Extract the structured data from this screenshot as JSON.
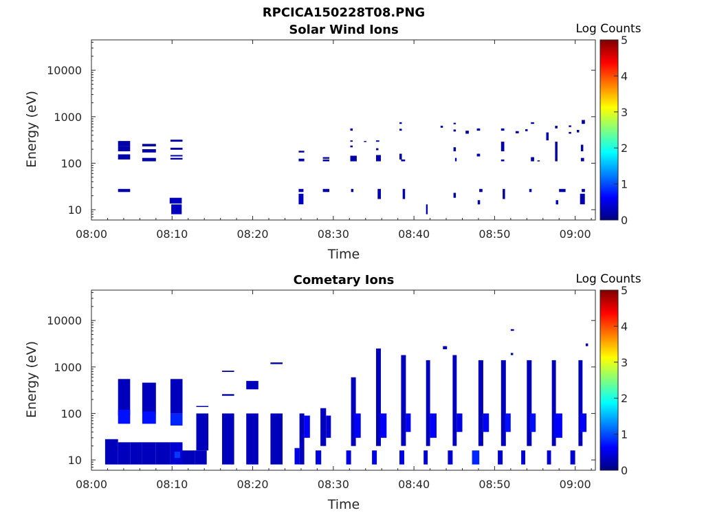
{
  "figure_title": "RPCICA150228T08.PNG",
  "colors": {
    "cmap": [
      "#00007f",
      "#0000ff",
      "#007fff",
      "#00ffff",
      "#7fff7f",
      "#ffff00",
      "#ff7f00",
      "#ff0000",
      "#7f0000"
    ],
    "axis": "#262626"
  },
  "chart_data": [
    {
      "type": "heatmap",
      "title": "Solar Wind Ions",
      "xlabel": "Time",
      "ylabel": "Energy (eV)",
      "colorbar_label": "Log Counts",
      "colorbar_ticks": [
        "0",
        "1",
        "2",
        "3",
        "4",
        "5"
      ],
      "clim": [
        0,
        5
      ],
      "x_unit": "minutes after 08:00",
      "xlim": [
        0,
        62.5
      ],
      "x_ticks": [
        0,
        10,
        20,
        30,
        40,
        50,
        60
      ],
      "x_tick_labels": [
        "08:00",
        "08:10",
        "08:20",
        "08:30",
        "08:40",
        "08:50",
        "09:00"
      ],
      "y_scale": "log",
      "ylim": [
        6,
        45000
      ],
      "y_ticks": [
        10,
        100,
        1000,
        10000
      ],
      "y_tick_labels": [
        "10",
        "100",
        "1000",
        "10000"
      ],
      "cells": [
        [
          3.3,
          4.8,
          230,
          300,
          0.2
        ],
        [
          3.3,
          4.8,
          180,
          230,
          0.2
        ],
        [
          3.3,
          4.8,
          120,
          155,
          0.2
        ],
        [
          3.3,
          4.8,
          24,
          28,
          0.2
        ],
        [
          6.3,
          8.0,
          230,
          260,
          0.2
        ],
        [
          6.3,
          8.0,
          170,
          200,
          0.2
        ],
        [
          6.3,
          8.0,
          110,
          130,
          0.2
        ],
        [
          9.8,
          11.3,
          290,
          320,
          0.2
        ],
        [
          9.8,
          11.3,
          195,
          215,
          0.2
        ],
        [
          9.8,
          11.3,
          140,
          150,
          0.2
        ],
        [
          9.8,
          11.3,
          120,
          130,
          0.2
        ],
        [
          9.7,
          11.2,
          13.5,
          18,
          0.3
        ],
        [
          9.9,
          11.2,
          8,
          13,
          0.3
        ],
        [
          25.7,
          26.4,
          170,
          185,
          0.2
        ],
        [
          25.7,
          26.4,
          110,
          125,
          0.2
        ],
        [
          25.7,
          26.3,
          24,
          28,
          0.2
        ],
        [
          25.7,
          26.3,
          13,
          22,
          0.3
        ],
        [
          28.7,
          29.5,
          125,
          135,
          0.2
        ],
        [
          28.7,
          29.5,
          110,
          120,
          0.2
        ],
        [
          28.7,
          29.5,
          24,
          28,
          0.2
        ],
        [
          32.1,
          32.4,
          500,
          560,
          0.2
        ],
        [
          32.1,
          32.4,
          290,
          310,
          0.2
        ],
        [
          32.1,
          32.4,
          220,
          240,
          0.2
        ],
        [
          32.1,
          32.9,
          110,
          145,
          0.2
        ],
        [
          32.2,
          32.5,
          24,
          28,
          0.2
        ],
        [
          33.8,
          34.1,
          290,
          300,
          0.2
        ],
        [
          35.3,
          35.7,
          290,
          310,
          0.2
        ],
        [
          35.3,
          35.6,
          190,
          210,
          0.2
        ],
        [
          35.3,
          35.9,
          110,
          150,
          0.2
        ],
        [
          35.5,
          35.9,
          17,
          28,
          0.2
        ],
        [
          38.2,
          38.5,
          700,
          760,
          0.2
        ],
        [
          38.2,
          38.5,
          500,
          550,
          0.2
        ],
        [
          38.2,
          38.5,
          120,
          160,
          0.2
        ],
        [
          38.4,
          38.9,
          110,
          120,
          0.2
        ],
        [
          38.6,
          38.9,
          17,
          28,
          0.2
        ],
        [
          41.5,
          41.7,
          8,
          13,
          0.2
        ],
        [
          43.3,
          43.6,
          580,
          640,
          0.2
        ],
        [
          44.9,
          45.2,
          690,
          740,
          0.2
        ],
        [
          44.9,
          45.2,
          480,
          530,
          0.2
        ],
        [
          44.9,
          45.2,
          180,
          220,
          0.2
        ],
        [
          45.1,
          45.3,
          110,
          130,
          0.2
        ],
        [
          44.9,
          45.2,
          18,
          23,
          0.2
        ],
        [
          46.4,
          46.8,
          430,
          500,
          0.2
        ],
        [
          47.8,
          48.2,
          500,
          560,
          0.2
        ],
        [
          47.8,
          48.2,
          140,
          160,
          0.2
        ],
        [
          48.1,
          48.5,
          24,
          28,
          0.2
        ],
        [
          47.9,
          48.2,
          13,
          16,
          0.2
        ],
        [
          50.8,
          51.2,
          500,
          560,
          0.2
        ],
        [
          50.8,
          51.2,
          180,
          290,
          0.2
        ],
        [
          50.8,
          51.2,
          110,
          120,
          0.2
        ],
        [
          51.0,
          51.3,
          17,
          28,
          0.2
        ],
        [
          52.6,
          53.0,
          440,
          490,
          0.2
        ],
        [
          53.8,
          54.1,
          490,
          540,
          0.2
        ],
        [
          54.5,
          54.9,
          700,
          760,
          0.2
        ],
        [
          54.5,
          54.9,
          110,
          135,
          0.2
        ],
        [
          55.3,
          55.6,
          110,
          115,
          0.2
        ],
        [
          54.3,
          54.6,
          24,
          28,
          0.2
        ],
        [
          56.4,
          56.7,
          310,
          460,
          0.2
        ],
        [
          57.5,
          57.8,
          560,
          640,
          0.2
        ],
        [
          57.5,
          57.8,
          110,
          290,
          0.2
        ],
        [
          57.6,
          57.9,
          13,
          16,
          0.2
        ],
        [
          58.0,
          58.8,
          24,
          28,
          0.2
        ],
        [
          59.2,
          59.5,
          600,
          650,
          0.2
        ],
        [
          59.2,
          59.5,
          430,
          470,
          0.2
        ],
        [
          60.2,
          60.5,
          460,
          520,
          0.2
        ],
        [
          60.8,
          61.2,
          700,
          850,
          0.2
        ],
        [
          60.7,
          61.0,
          180,
          250,
          0.2
        ],
        [
          60.7,
          61.1,
          110,
          130,
          0.2
        ],
        [
          60.6,
          61.2,
          13,
          22,
          0.2
        ],
        [
          60.8,
          61.2,
          24,
          28,
          0.2
        ]
      ]
    },
    {
      "type": "heatmap",
      "title": "Cometary Ions",
      "xlabel": "Time",
      "ylabel": "Energy (eV)",
      "colorbar_label": "Log Counts",
      "colorbar_ticks": [
        "0",
        "1",
        "2",
        "3",
        "4",
        "5"
      ],
      "clim": [
        0,
        5
      ],
      "x_unit": "minutes after 08:00",
      "xlim": [
        0,
        62.5
      ],
      "x_ticks": [
        0,
        10,
        20,
        30,
        40,
        50,
        60
      ],
      "x_tick_labels": [
        "08:00",
        "08:10",
        "08:20",
        "08:30",
        "08:40",
        "08:50",
        "09:00"
      ],
      "y_scale": "log",
      "ylim": [
        6,
        45000
      ],
      "y_ticks": [
        10,
        100,
        1000,
        10000
      ],
      "y_tick_labels": [
        "10",
        "100",
        "1000",
        "10000"
      ],
      "cells": [
        [
          1.7,
          3.3,
          8,
          28,
          0.3
        ],
        [
          3.3,
          4.8,
          8,
          24,
          0.3
        ],
        [
          3.3,
          4.8,
          90,
          550,
          0.3
        ],
        [
          3.3,
          4.8,
          60,
          120,
          0.7
        ],
        [
          4.8,
          6.3,
          8,
          24,
          0.3
        ],
        [
          6.3,
          8.0,
          8,
          24,
          0.3
        ],
        [
          6.3,
          8.0,
          100,
          460,
          0.3
        ],
        [
          6.3,
          8.0,
          60,
          110,
          0.7
        ],
        [
          8.0,
          9.8,
          8,
          24,
          0.3
        ],
        [
          9.8,
          11.3,
          8,
          24,
          0.4
        ],
        [
          9.8,
          11.3,
          100,
          550,
          0.3
        ],
        [
          9.8,
          11.3,
          55,
          100,
          0.8
        ],
        [
          10.3,
          11.0,
          11,
          15,
          0.9
        ],
        [
          11.3,
          12.8,
          8,
          16,
          0.3
        ],
        [
          12.8,
          14.3,
          8,
          16,
          0.3
        ],
        [
          13.0,
          14.5,
          140,
          145,
          0.2
        ],
        [
          13.0,
          14.5,
          16,
          100,
          0.3
        ],
        [
          16.2,
          17.7,
          8,
          100,
          0.3
        ],
        [
          16.2,
          17.7,
          240,
          260,
          0.2
        ],
        [
          16.2,
          17.7,
          780,
          830,
          0.2
        ],
        [
          19.2,
          20.7,
          8,
          100,
          0.3
        ],
        [
          19.2,
          20.7,
          330,
          500,
          0.3
        ],
        [
          22.2,
          23.7,
          8,
          100,
          0.3
        ],
        [
          22.2,
          23.7,
          1150,
          1250,
          0.2
        ],
        [
          25.2,
          25.8,
          8,
          18,
          0.5
        ],
        [
          25.8,
          26.4,
          8,
          100,
          0.3
        ],
        [
          26.4,
          27.1,
          30,
          90,
          0.6
        ],
        [
          27.8,
          28.5,
          8,
          16,
          0.5
        ],
        [
          28.4,
          29.1,
          20,
          130,
          0.3
        ],
        [
          29.1,
          29.7,
          30,
          90,
          0.4
        ],
        [
          31.6,
          32.2,
          8,
          16,
          0.5
        ],
        [
          32.2,
          32.8,
          20,
          600,
          0.3
        ],
        [
          32.6,
          33.4,
          30,
          100,
          0.6
        ],
        [
          34.8,
          35.4,
          8,
          16,
          0.5
        ],
        [
          35.3,
          35.9,
          20,
          2500,
          0.3
        ],
        [
          35.8,
          36.6,
          30,
          100,
          0.6
        ],
        [
          38.2,
          38.8,
          8,
          16,
          0.5
        ],
        [
          38.4,
          39.0,
          20,
          1800,
          0.3
        ],
        [
          39.0,
          39.6,
          40,
          100,
          0.6
        ],
        [
          41.2,
          41.7,
          8,
          16,
          0.4
        ],
        [
          41.5,
          42.0,
          20,
          1400,
          0.3
        ],
        [
          42.0,
          42.8,
          30,
          100,
          0.6
        ],
        [
          43.6,
          44.1,
          2400,
          2800,
          0.2
        ],
        [
          44.2,
          44.8,
          8,
          16,
          0.4
        ],
        [
          44.8,
          45.3,
          20,
          1800,
          0.3
        ],
        [
          45.3,
          46.0,
          40,
          100,
          0.5
        ],
        [
          47.2,
          48.1,
          8,
          16,
          0.8
        ],
        [
          48.0,
          48.6,
          20,
          1400,
          0.3
        ],
        [
          48.6,
          49.3,
          40,
          100,
          0.6
        ],
        [
          50.4,
          51.0,
          8,
          16,
          0.4
        ],
        [
          50.8,
          51.4,
          20,
          1400,
          0.3
        ],
        [
          51.3,
          52.0,
          40,
          100,
          0.7
        ],
        [
          52.0,
          52.3,
          1800,
          2000,
          0.2
        ],
        [
          52.0,
          52.4,
          6000,
          6500,
          0.2
        ],
        [
          53.3,
          53.8,
          8,
          16,
          0.4
        ],
        [
          54.0,
          54.6,
          20,
          1400,
          0.3
        ],
        [
          54.4,
          55.1,
          40,
          100,
          0.7
        ],
        [
          56.5,
          57.0,
          8,
          16,
          0.4
        ],
        [
          57.1,
          57.6,
          20,
          1400,
          0.3
        ],
        [
          57.4,
          58.4,
          30,
          100,
          0.6
        ],
        [
          59.4,
          60.0,
          8,
          16,
          0.4
        ],
        [
          60.4,
          60.9,
          20,
          1400,
          0.3
        ],
        [
          60.6,
          61.4,
          40,
          100,
          0.6
        ],
        [
          61.3,
          61.6,
          2800,
          3200,
          0.2
        ]
      ]
    }
  ]
}
